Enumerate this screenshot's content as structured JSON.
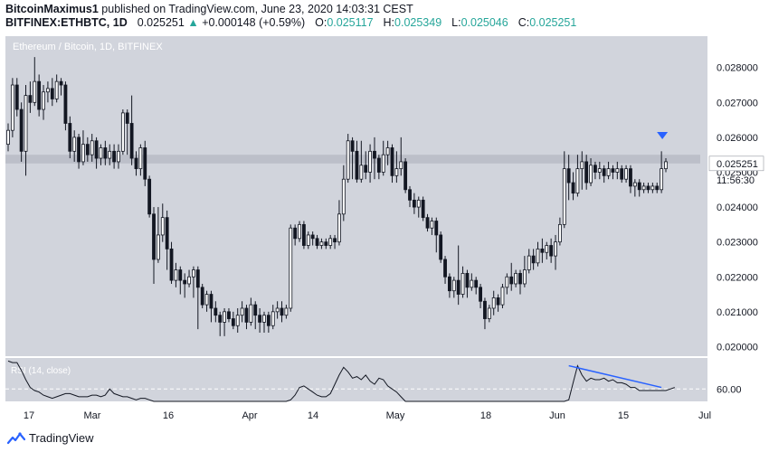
{
  "header": {
    "author": "BitcoinMaximus1",
    "published_text": "published on TradingView.com, June 23, 2020 14:03:31 CEST",
    "symbol": "BITFINEX:ETHBTC, 1D",
    "last": "0.025251",
    "arrow": "▲",
    "change": "+0.000148 (+0.59%)",
    "o_label": "O:",
    "o_value": "0.025117",
    "h_label": "H:",
    "h_value": "0.025349",
    "l_label": "L:",
    "l_value": "0.025046",
    "c_label": "C:",
    "c_value": "0.025251"
  },
  "footer": {
    "brand": "TradingView",
    "logo_icon": "tradingview-logo-icon"
  },
  "chart_data": {
    "type": "candlestick",
    "title": "Ethereum / Bitcoin, 1D, BITFINEX",
    "y_ticks": [
      "0.028000",
      "0.027000",
      "0.026000",
      "0.025000",
      "0.024000",
      "0.023000",
      "0.022000",
      "0.021000",
      "0.020000"
    ],
    "ylim": [
      0.0197,
      0.0289
    ],
    "x_tick_labels": [
      "17",
      "Mar",
      "16",
      "Apr",
      "14",
      "May",
      "18",
      "Jun",
      "15",
      "Jul"
    ],
    "last_price_label": "0.025251",
    "countdown_label": "11:56:30",
    "resistance_zone": [
      0.02525,
      0.0255
    ],
    "marker_icon": "down-triangle-icon",
    "candles": [
      [
        0.0258,
        0.0262,
        0.0256,
        0.0264
      ],
      [
        0.0262,
        0.0275,
        0.026,
        0.0277
      ],
      [
        0.0275,
        0.0268,
        0.0266,
        0.0277
      ],
      [
        0.0268,
        0.0256,
        0.0253,
        0.027
      ],
      [
        0.0256,
        0.0272,
        0.0249,
        0.0275
      ],
      [
        0.0272,
        0.027,
        0.0267,
        0.0276
      ],
      [
        0.027,
        0.0276,
        0.0269,
        0.0283
      ],
      [
        0.0276,
        0.0268,
        0.0266,
        0.0278
      ],
      [
        0.0268,
        0.0273,
        0.0265,
        0.0275
      ],
      [
        0.0273,
        0.0274,
        0.027,
        0.0276
      ],
      [
        0.0274,
        0.0271,
        0.0269,
        0.0277
      ],
      [
        0.0271,
        0.0276,
        0.027,
        0.0278
      ],
      [
        0.0276,
        0.0275,
        0.0272,
        0.0277
      ],
      [
        0.0275,
        0.0264,
        0.0262,
        0.0276
      ],
      [
        0.0264,
        0.0256,
        0.0254,
        0.0266
      ],
      [
        0.0256,
        0.026,
        0.0253,
        0.0262
      ],
      [
        0.026,
        0.0253,
        0.0251,
        0.0261
      ],
      [
        0.0253,
        0.0258,
        0.0252,
        0.0262
      ],
      [
        0.0258,
        0.0255,
        0.0253,
        0.026
      ],
      [
        0.0255,
        0.0259,
        0.0253,
        0.0261
      ],
      [
        0.0259,
        0.0254,
        0.0251,
        0.026
      ],
      [
        0.0254,
        0.0257,
        0.0252,
        0.0258
      ],
      [
        0.0257,
        0.0254,
        0.0252,
        0.0259
      ],
      [
        0.0254,
        0.0256,
        0.0252,
        0.0258
      ],
      [
        0.0256,
        0.0253,
        0.0251,
        0.0258
      ],
      [
        0.0253,
        0.0256,
        0.0251,
        0.0258
      ],
      [
        0.0256,
        0.0267,
        0.0255,
        0.0268
      ],
      [
        0.0267,
        0.0264,
        0.0255,
        0.0268
      ],
      [
        0.0264,
        0.0254,
        0.0252,
        0.0272
      ],
      [
        0.0254,
        0.0251,
        0.0249,
        0.0256
      ],
      [
        0.0251,
        0.0257,
        0.0249,
        0.0258
      ],
      [
        0.0257,
        0.0248,
        0.0246,
        0.0259
      ],
      [
        0.0248,
        0.0238,
        0.0237,
        0.0249
      ],
      [
        0.0238,
        0.0225,
        0.0218,
        0.024
      ],
      [
        0.0225,
        0.0232,
        0.0224,
        0.024
      ],
      [
        0.0232,
        0.0237,
        0.023,
        0.0241
      ],
      [
        0.0237,
        0.0228,
        0.0222,
        0.0239
      ],
      [
        0.0228,
        0.0219,
        0.0218,
        0.023
      ],
      [
        0.0219,
        0.0222,
        0.0217,
        0.0224
      ],
      [
        0.0222,
        0.0219,
        0.0215,
        0.0223
      ],
      [
        0.0219,
        0.0218,
        0.0214,
        0.0221
      ],
      [
        0.0218,
        0.022,
        0.0217,
        0.0222
      ],
      [
        0.022,
        0.0222,
        0.0214,
        0.0223
      ],
      [
        0.0222,
        0.0217,
        0.0205,
        0.0223
      ],
      [
        0.0217,
        0.0212,
        0.0211,
        0.0218
      ],
      [
        0.0212,
        0.0215,
        0.021,
        0.0216
      ],
      [
        0.0215,
        0.0211,
        0.0207,
        0.0216
      ],
      [
        0.0211,
        0.0209,
        0.0207,
        0.0213
      ],
      [
        0.0209,
        0.0207,
        0.0203,
        0.021
      ],
      [
        0.0207,
        0.021,
        0.0203,
        0.0211
      ],
      [
        0.021,
        0.0208,
        0.0207,
        0.0211
      ],
      [
        0.0208,
        0.0206,
        0.0205,
        0.021
      ],
      [
        0.0206,
        0.0209,
        0.0204,
        0.0211
      ],
      [
        0.0209,
        0.0211,
        0.0207,
        0.0213
      ],
      [
        0.0211,
        0.0207,
        0.0205,
        0.0212
      ],
      [
        0.0207,
        0.0212,
        0.0206,
        0.0214
      ],
      [
        0.0212,
        0.0209,
        0.0205,
        0.0213
      ],
      [
        0.0209,
        0.0207,
        0.0204,
        0.0211
      ],
      [
        0.0207,
        0.0209,
        0.0204,
        0.021
      ],
      [
        0.0209,
        0.0206,
        0.0204,
        0.021
      ],
      [
        0.0206,
        0.021,
        0.0205,
        0.0212
      ],
      [
        0.021,
        0.0211,
        0.0208,
        0.0213
      ],
      [
        0.0211,
        0.0209,
        0.0207,
        0.0213
      ],
      [
        0.0209,
        0.0211,
        0.0208,
        0.0212
      ],
      [
        0.0211,
        0.0234,
        0.021,
        0.0235
      ],
      [
        0.0234,
        0.0231,
        0.0229,
        0.0235
      ],
      [
        0.0231,
        0.0235,
        0.023,
        0.0236
      ],
      [
        0.0235,
        0.0229,
        0.0228,
        0.0236
      ],
      [
        0.0229,
        0.0232,
        0.0228,
        0.0233
      ],
      [
        0.0232,
        0.0231,
        0.0229,
        0.0233
      ],
      [
        0.0231,
        0.0229,
        0.0228,
        0.0232
      ],
      [
        0.0229,
        0.023,
        0.0228,
        0.0231
      ],
      [
        0.023,
        0.0229,
        0.0228,
        0.0231
      ],
      [
        0.0229,
        0.0231,
        0.0228,
        0.0232
      ],
      [
        0.0231,
        0.023,
        0.0228,
        0.0232
      ],
      [
        0.023,
        0.0238,
        0.0229,
        0.0242
      ],
      [
        0.0238,
        0.0248,
        0.0236,
        0.0252
      ],
      [
        0.0248,
        0.0259,
        0.0247,
        0.0261
      ],
      [
        0.0259,
        0.0256,
        0.0248,
        0.026
      ],
      [
        0.0256,
        0.0248,
        0.0247,
        0.0259
      ],
      [
        0.0248,
        0.0252,
        0.0247,
        0.0259
      ],
      [
        0.0252,
        0.025,
        0.0248,
        0.0256
      ],
      [
        0.025,
        0.0256,
        0.0247,
        0.0258
      ],
      [
        0.0256,
        0.0254,
        0.0248,
        0.026
      ],
      [
        0.0254,
        0.025,
        0.0248,
        0.0255
      ],
      [
        0.025,
        0.0255,
        0.0249,
        0.0259
      ],
      [
        0.0255,
        0.0257,
        0.0252,
        0.0259
      ],
      [
        0.0257,
        0.0249,
        0.0247,
        0.0258
      ],
      [
        0.0249,
        0.0251,
        0.0247,
        0.0256
      ],
      [
        0.0251,
        0.0253,
        0.0249,
        0.026
      ],
      [
        0.0253,
        0.0245,
        0.0244,
        0.0254
      ],
      [
        0.0245,
        0.0242,
        0.024,
        0.0246
      ],
      [
        0.0242,
        0.024,
        0.0238,
        0.0244
      ],
      [
        0.024,
        0.0242,
        0.0237,
        0.0243
      ],
      [
        0.0242,
        0.0237,
        0.0236,
        0.0243
      ],
      [
        0.0237,
        0.0234,
        0.0233,
        0.0238
      ],
      [
        0.0234,
        0.0236,
        0.0232,
        0.0237
      ],
      [
        0.0236,
        0.0232,
        0.0227,
        0.0237
      ],
      [
        0.0232,
        0.0225,
        0.0224,
        0.0233
      ],
      [
        0.0225,
        0.022,
        0.0218,
        0.0226
      ],
      [
        0.022,
        0.0216,
        0.0214,
        0.0221
      ],
      [
        0.0216,
        0.0219,
        0.0214,
        0.022
      ],
      [
        0.0219,
        0.0215,
        0.0212,
        0.0229
      ],
      [
        0.0215,
        0.0221,
        0.0214,
        0.0223
      ],
      [
        0.0221,
        0.0217,
        0.0214,
        0.0222
      ],
      [
        0.0217,
        0.0219,
        0.0216,
        0.0221
      ],
      [
        0.0219,
        0.0217,
        0.0215,
        0.022
      ],
      [
        0.0217,
        0.0213,
        0.0211,
        0.0218
      ],
      [
        0.0213,
        0.0208,
        0.0205,
        0.0214
      ],
      [
        0.0208,
        0.0211,
        0.0207,
        0.0212
      ],
      [
        0.0211,
        0.0214,
        0.0209,
        0.0216
      ],
      [
        0.0214,
        0.0212,
        0.021,
        0.0215
      ],
      [
        0.0212,
        0.0217,
        0.0211,
        0.0218
      ],
      [
        0.0217,
        0.022,
        0.0215,
        0.0221
      ],
      [
        0.022,
        0.0218,
        0.0216,
        0.0224
      ],
      [
        0.0218,
        0.0221,
        0.0217,
        0.0222
      ],
      [
        0.0221,
        0.0218,
        0.0215,
        0.0222
      ],
      [
        0.0218,
        0.0222,
        0.0217,
        0.0226
      ],
      [
        0.0222,
        0.0226,
        0.0221,
        0.0228
      ],
      [
        0.0226,
        0.0224,
        0.0222,
        0.0228
      ],
      [
        0.0224,
        0.0228,
        0.0223,
        0.023
      ],
      [
        0.0228,
        0.0227,
        0.0224,
        0.0231
      ],
      [
        0.0227,
        0.0229,
        0.0225,
        0.023
      ],
      [
        0.0229,
        0.0226,
        0.0224,
        0.0231
      ],
      [
        0.0226,
        0.023,
        0.0222,
        0.0232
      ],
      [
        0.023,
        0.0235,
        0.0229,
        0.0237
      ],
      [
        0.0235,
        0.0251,
        0.0234,
        0.0256
      ],
      [
        0.0251,
        0.0247,
        0.0242,
        0.0255
      ],
      [
        0.0247,
        0.0244,
        0.0242,
        0.025
      ],
      [
        0.0244,
        0.0251,
        0.0243,
        0.0255
      ],
      [
        0.0251,
        0.0253,
        0.0245,
        0.0256
      ],
      [
        0.0253,
        0.0247,
        0.0245,
        0.0255
      ],
      [
        0.0247,
        0.0252,
        0.0246,
        0.0254
      ],
      [
        0.0252,
        0.025,
        0.0248,
        0.0253
      ],
      [
        0.025,
        0.0251,
        0.0248,
        0.0253
      ],
      [
        0.0251,
        0.0249,
        0.0247,
        0.0252
      ],
      [
        0.0249,
        0.0251,
        0.0248,
        0.0253
      ],
      [
        0.0251,
        0.025,
        0.0248,
        0.0252
      ],
      [
        0.025,
        0.0251,
        0.0248,
        0.0253
      ],
      [
        0.0251,
        0.0248,
        0.0247,
        0.0252
      ],
      [
        0.0248,
        0.0251,
        0.0247,
        0.0252
      ],
      [
        0.0251,
        0.0246,
        0.0244,
        0.0252
      ],
      [
        0.0246,
        0.0247,
        0.0243,
        0.0248
      ],
      [
        0.0247,
        0.0245,
        0.0243,
        0.0248
      ],
      [
        0.0245,
        0.0246,
        0.0244,
        0.0247
      ],
      [
        0.0246,
        0.0245,
        0.0244,
        0.0247
      ],
      [
        0.0245,
        0.0246,
        0.0244,
        0.0247
      ],
      [
        0.0246,
        0.0245,
        0.0244,
        0.0247
      ],
      [
        0.0245,
        0.0251,
        0.0244,
        0.0256
      ],
      [
        0.0251,
        0.0253,
        0.025,
        0.0254
      ]
    ],
    "rsi": {
      "label": "RSI (14, close)",
      "tick": "60.00",
      "level": 60,
      "range": [
        52,
        80
      ],
      "values": [
        78,
        77,
        77,
        72,
        66,
        61,
        59,
        58,
        56,
        55,
        54,
        55,
        56,
        57,
        57,
        56,
        55,
        55,
        55,
        56,
        56,
        55,
        56,
        60,
        57,
        56,
        55,
        55,
        54,
        53,
        54,
        54,
        53,
        52,
        52,
        52,
        52,
        52,
        52,
        52,
        52,
        52,
        52,
        52,
        52,
        52,
        52,
        52,
        52,
        52,
        52,
        52,
        52,
        52,
        52,
        52,
        52,
        52,
        52,
        52,
        52,
        52,
        52,
        52,
        53,
        56,
        61,
        62,
        60,
        58,
        56,
        55,
        55,
        57,
        63,
        69,
        74,
        71,
        67,
        68,
        66,
        69,
        65,
        63,
        67,
        66,
        62,
        60,
        58,
        55,
        52,
        52,
        52,
        52,
        52,
        52,
        52,
        52,
        52,
        52,
        52,
        52,
        52,
        52,
        52,
        52,
        52,
        52,
        52,
        52,
        52,
        52,
        52,
        52,
        52,
        52,
        52,
        52,
        52,
        52,
        52,
        52,
        52,
        52,
        52,
        52,
        52,
        53,
        64,
        75,
        69,
        65,
        67,
        66,
        66,
        67,
        65,
        66,
        64,
        64,
        63,
        61,
        61,
        59,
        59,
        59,
        59,
        59,
        59,
        59,
        60,
        61
      ],
      "divergence": [
        [
          127,
          75
        ],
        [
          148,
          61
        ]
      ]
    }
  }
}
